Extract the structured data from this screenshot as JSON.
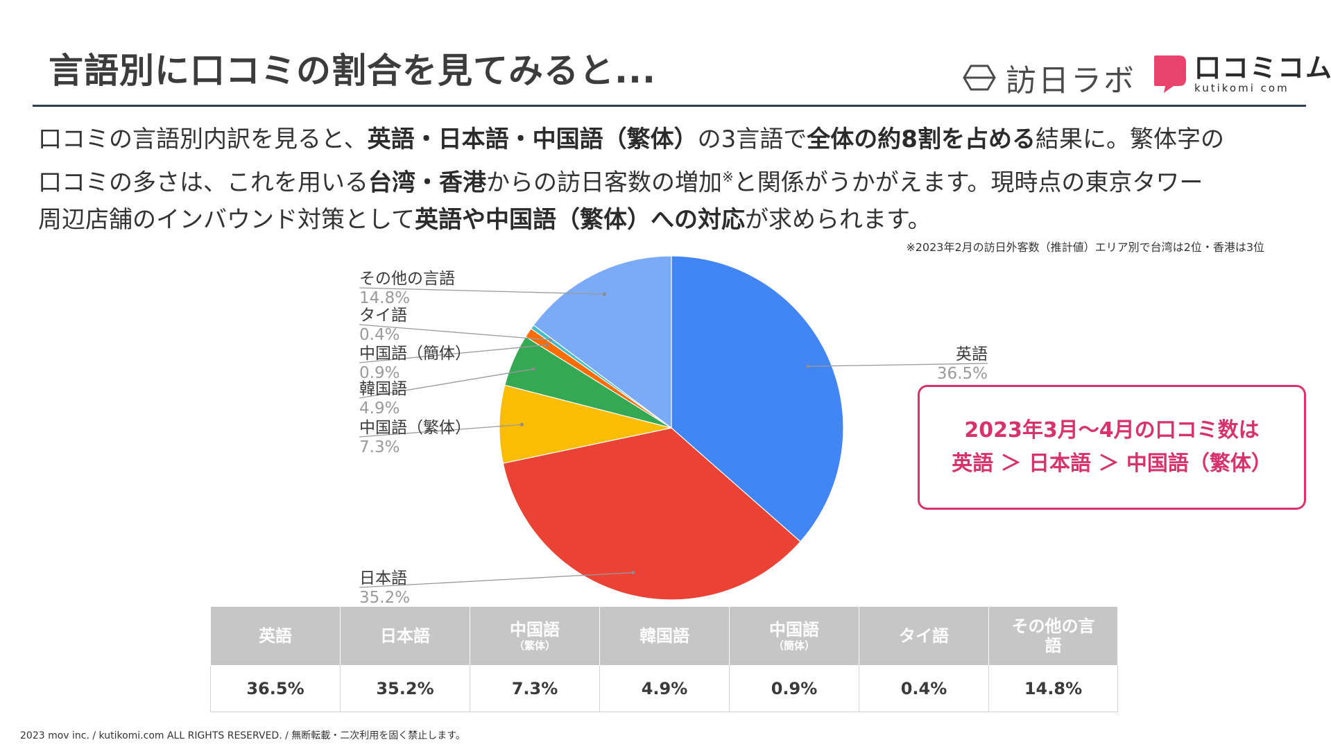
{
  "title": "言語別に口コミの割合を見てみると...",
  "logos": {
    "houjin_lab": "訪日ラボ",
    "kutikomi_main": "口コミコム",
    "kutikomi_sub": "kutikomi com"
  },
  "body": {
    "line1": [
      {
        "t": "口コミの言語別内訳を見ると、",
        "b": false
      },
      {
        "t": "英語・日本語・中国語（繁体）",
        "b": true
      },
      {
        "t": "の3言語で",
        "b": false
      },
      {
        "t": "全体の約8割を占める",
        "b": true
      },
      {
        "t": "結果に。繁体字の",
        "b": false
      }
    ],
    "line2": [
      {
        "t": "口コミの多さは、これを用いる",
        "b": false
      },
      {
        "t": "台湾・香港",
        "b": true
      },
      {
        "t": "からの訪日客数の増加",
        "b": false
      },
      {
        "t": "※",
        "b": false,
        "sup": true
      },
      {
        "t": "と関係がうかがえます。現時点の東京タワー",
        "b": false
      }
    ],
    "line3": [
      {
        "t": "周辺店舗のインバウンド対策として",
        "b": false
      },
      {
        "t": "英語や中国語（繁体）への対応",
        "b": true
      },
      {
        "t": "が求められます。",
        "b": false
      }
    ]
  },
  "footnote": "※2023年2月の訪日外客数（推計値）エリア別で台湾は2位・香港は3位",
  "chart_data": {
    "type": "pie",
    "start_angle_deg": 0,
    "direction": "clockwise",
    "slices": [
      {
        "label": "英語",
        "value": 36.5,
        "display": "36.5%",
        "color": "#4285f4",
        "label_side": "right"
      },
      {
        "label": "日本語",
        "value": 35.2,
        "display": "35.2%",
        "color": "#ea4335",
        "label_side": "left"
      },
      {
        "label": "中国語（繁体）",
        "value": 7.3,
        "display": "7.3%",
        "color": "#fbbc04",
        "label_side": "left"
      },
      {
        "label": "韓国語",
        "value": 4.9,
        "display": "4.9%",
        "color": "#34a853",
        "label_side": "left"
      },
      {
        "label": "中国語（簡体）",
        "value": 0.9,
        "display": "0.9%",
        "color": "#ff6d01",
        "label_side": "left"
      },
      {
        "label": "タイ語",
        "value": 0.4,
        "display": "0.4%",
        "color": "#46bdc6",
        "label_side": "left"
      },
      {
        "label": "その他の言語",
        "value": 14.8,
        "display": "14.8%",
        "color": "#7baaf7",
        "label_side": "left"
      }
    ]
  },
  "callout": {
    "line1": "2023年3月～4月の口コミ数は",
    "line2": "英語 ＞ 日本語 ＞ 中国語（繁体）"
  },
  "table": {
    "headers": [
      {
        "main": "英語",
        "sub": ""
      },
      {
        "main": "日本語",
        "sub": ""
      },
      {
        "main": "中国語",
        "sub": "（繁体）"
      },
      {
        "main": "韓国語",
        "sub": ""
      },
      {
        "main": "中国語",
        "sub": "（簡体）"
      },
      {
        "main": "タイ語",
        "sub": ""
      },
      {
        "main": "その他の言語",
        "sub": ""
      }
    ],
    "values": [
      "36.5%",
      "35.2%",
      "7.3%",
      "4.9%",
      "0.9%",
      "0.4%",
      "14.8%"
    ]
  },
  "copyright": "2023 mov inc. / kutikomi.com ALL RIGHTS RESERVED. / 無断転載・二次利用を固く禁止します。"
}
